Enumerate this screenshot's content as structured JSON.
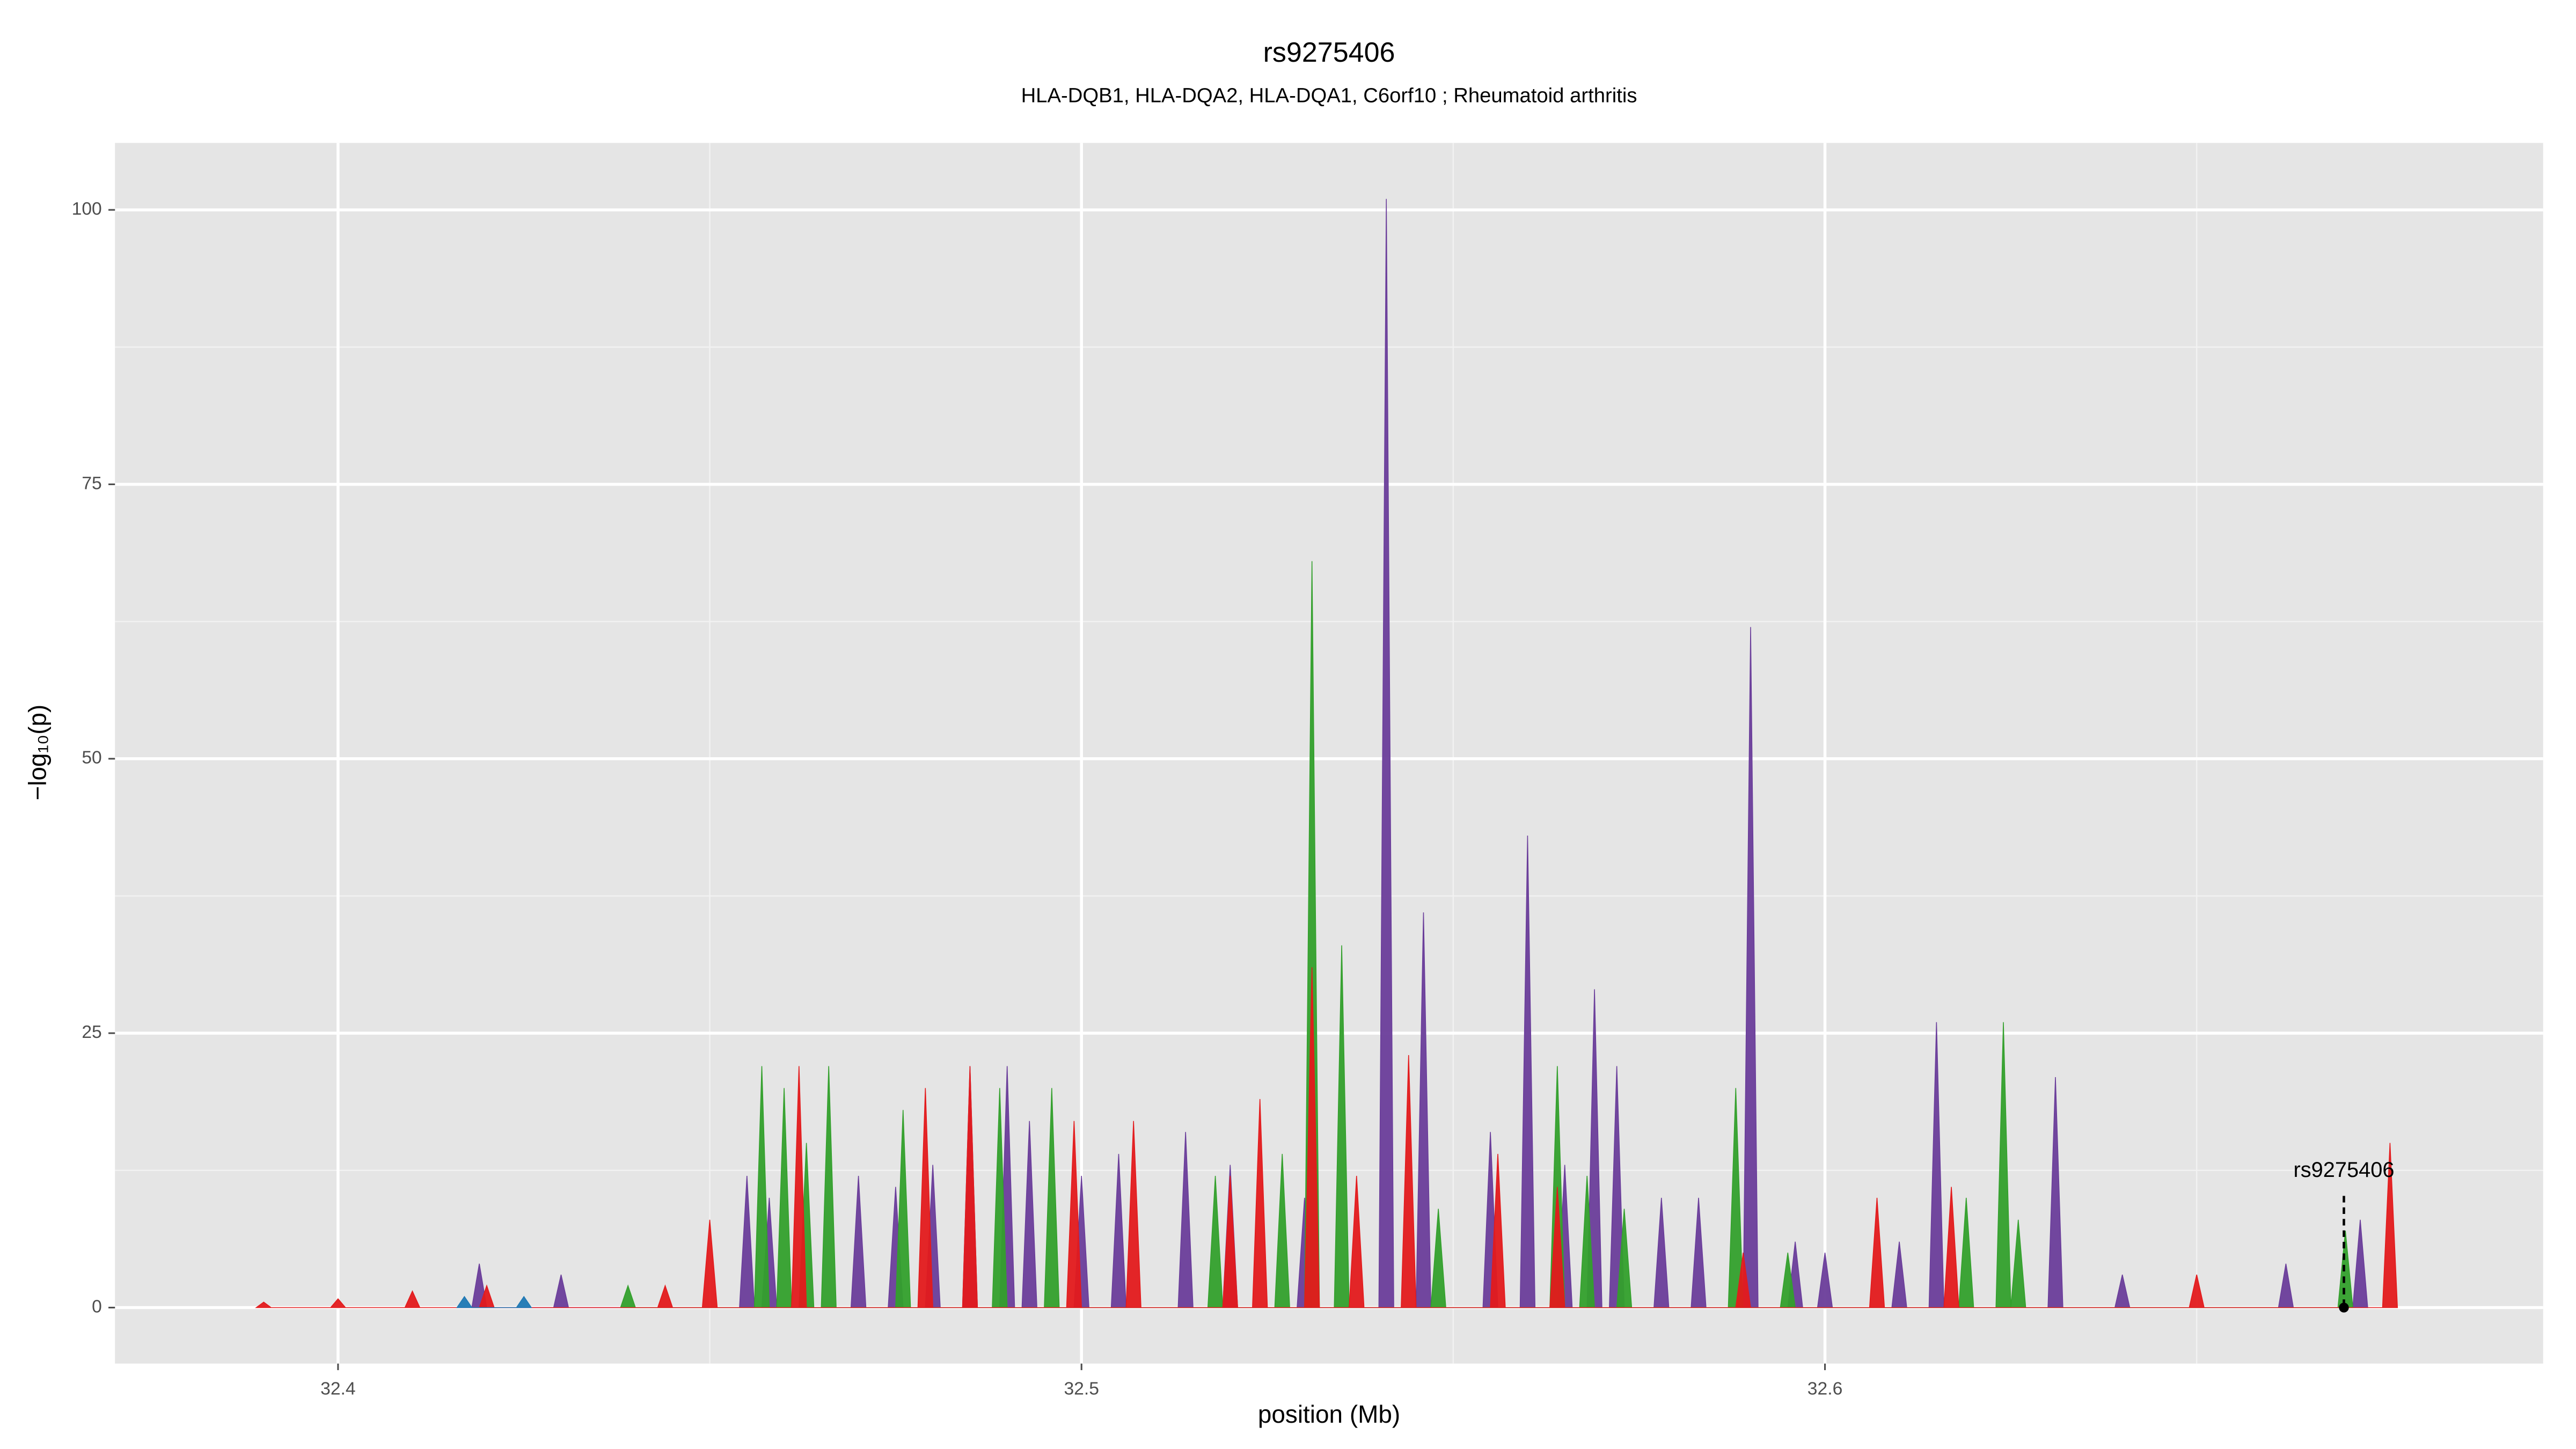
{
  "chart_data": {
    "type": "area",
    "title": "rs9275406",
    "subtitle": "HLA-DQB1, HLA-DQA2, HLA-DQA1, C6orf10 ; Rheumatoid arthritis",
    "xlabel": "position (Mb)",
    "ylabel": "−log₁₀(p)",
    "xlim": [
      32.37,
      32.6966
    ],
    "ylim": [
      -5.1,
      106.1
    ],
    "xticks": [
      32.4,
      32.5,
      32.6
    ],
    "yticks": [
      0,
      25,
      50,
      75,
      100
    ],
    "xminorticks": [
      32.45,
      32.55,
      32.65
    ],
    "yminorticks": [
      12.5,
      37.5,
      62.5,
      87.5
    ],
    "grid": true,
    "series": [
      {
        "color": "#6a3d9a",
        "x": [
          32.418,
          32.419,
          32.42,
          32.429,
          32.43,
          32.431,
          32.454,
          32.455,
          32.456,
          32.457,
          32.458,
          32.459,
          32.469,
          32.47,
          32.471,
          32.474,
          32.475,
          32.476,
          32.479,
          32.48,
          32.481,
          32.484,
          32.485,
          32.486,
          32.489,
          32.49,
          32.491,
          32.492,
          32.493,
          32.494,
          32.499,
          32.5,
          32.501,
          32.504,
          32.505,
          32.506,
          32.513,
          32.514,
          32.515,
          32.519,
          32.52,
          32.521,
          32.529,
          32.53,
          32.531,
          32.54,
          32.541,
          32.542,
          32.545,
          32.546,
          32.547,
          32.554,
          32.555,
          32.556,
          32.559,
          32.56,
          32.561,
          32.564,
          32.565,
          32.566,
          32.568,
          32.569,
          32.57,
          32.571,
          32.572,
          32.573,
          32.577,
          32.578,
          32.579,
          32.582,
          32.583,
          32.584,
          32.589,
          32.59,
          32.591,
          32.595,
          32.596,
          32.597,
          32.599,
          32.6,
          32.601,
          32.609,
          32.61,
          32.611,
          32.614,
          32.615,
          32.616,
          32.63,
          32.631,
          32.632,
          32.639,
          32.64,
          32.641,
          32.661,
          32.662,
          32.663,
          32.671,
          32.672,
          32.673
        ],
        "values": [
          0,
          4,
          0,
          0,
          3,
          0,
          0,
          12,
          0,
          0,
          10,
          0,
          0,
          12,
          0,
          0,
          11,
          0,
          0,
          13,
          0,
          0,
          22,
          0,
          0,
          22,
          0,
          0,
          17,
          0,
          0,
          12,
          0,
          0,
          14,
          0,
          0,
          16,
          0,
          0,
          13,
          0,
          0,
          10,
          0,
          0,
          101,
          0,
          0,
          36,
          0,
          0,
          16,
          0,
          0,
          43,
          0,
          0,
          13,
          0,
          0,
          29,
          0,
          0,
          22,
          0,
          0,
          10,
          0,
          0,
          10,
          0,
          0,
          62,
          0,
          0,
          6,
          0,
          0,
          5,
          0,
          0,
          6,
          0,
          0,
          26,
          0,
          0,
          21,
          0,
          0,
          3,
          0,
          0,
          4,
          0,
          0,
          8,
          0
        ]
      },
      {
        "color": "#33a02c",
        "x": [
          32.438,
          32.439,
          32.44,
          32.456,
          32.457,
          32.458,
          32.459,
          32.46,
          32.461,
          32.462,
          32.463,
          32.464,
          32.465,
          32.466,
          32.467,
          32.475,
          32.476,
          32.477,
          32.488,
          32.489,
          32.49,
          32.495,
          32.496,
          32.497,
          32.517,
          32.518,
          32.519,
          32.526,
          32.527,
          32.528,
          32.53,
          32.531,
          32.532,
          32.534,
          32.535,
          32.536,
          32.547,
          32.548,
          32.549,
          32.563,
          32.564,
          32.565,
          32.567,
          32.568,
          32.569,
          32.572,
          32.573,
          32.574,
          32.587,
          32.588,
          32.589,
          32.594,
          32.595,
          32.596,
          32.618,
          32.619,
          32.62,
          32.623,
          32.624,
          32.625,
          32.625,
          32.626,
          32.627,
          32.669,
          32.67,
          32.671
        ],
        "values": [
          0,
          2,
          0,
          0,
          22,
          0,
          0,
          20,
          0,
          0,
          15,
          0,
          0,
          22,
          0,
          0,
          18,
          0,
          0,
          20,
          0,
          0,
          20,
          0,
          0,
          12,
          0,
          0,
          14,
          0,
          0,
          68,
          0,
          0,
          33,
          0,
          0,
          9,
          0,
          0,
          22,
          0,
          0,
          12,
          0,
          0,
          9,
          0,
          0,
          20,
          0,
          0,
          5,
          0,
          0,
          10,
          0,
          0,
          26,
          0,
          0,
          8,
          0,
          0,
          7,
          0
        ]
      },
      {
        "color": "#e31a1c",
        "x": [
          32.389,
          32.39,
          32.391,
          32.399,
          32.4,
          32.401,
          32.409,
          32.41,
          32.411,
          32.419,
          32.42,
          32.421,
          32.443,
          32.444,
          32.445,
          32.449,
          32.45,
          32.451,
          32.461,
          32.462,
          32.463,
          32.478,
          32.479,
          32.48,
          32.484,
          32.485,
          32.486,
          32.498,
          32.499,
          32.5,
          32.506,
          32.507,
          32.508,
          32.519,
          32.52,
          32.521,
          32.523,
          32.524,
          32.525,
          32.53,
          32.531,
          32.532,
          32.536,
          32.537,
          32.538,
          32.543,
          32.544,
          32.545,
          32.555,
          32.556,
          32.557,
          32.563,
          32.564,
          32.565,
          32.588,
          32.589,
          32.59,
          32.606,
          32.607,
          32.608,
          32.616,
          32.617,
          32.618,
          32.649,
          32.65,
          32.651,
          32.675,
          32.676,
          32.677
        ],
        "values": [
          0,
          0.5,
          0,
          0,
          0.8,
          0,
          0,
          1.5,
          0,
          0,
          2,
          0,
          0,
          2,
          0,
          0,
          8,
          0,
          0,
          22,
          0,
          0,
          20,
          0,
          0,
          22,
          0,
          0,
          17,
          0,
          0,
          17,
          0,
          0,
          12,
          0,
          0,
          19,
          0,
          0,
          31,
          0,
          0,
          12,
          0,
          0,
          23,
          0,
          0,
          14,
          0,
          0,
          11,
          0,
          0,
          5,
          0,
          0,
          10,
          0,
          0,
          11,
          0,
          0,
          3,
          0,
          0,
          15,
          0
        ]
      },
      {
        "color": "#1f78b4",
        "x": [
          32.416,
          32.417,
          32.418,
          32.424,
          32.425,
          32.426
        ],
        "values": [
          0,
          1,
          0,
          0,
          1,
          0
        ]
      }
    ],
    "annotation": {
      "text": "rs9275406",
      "x": 32.6698,
      "y": 0
    }
  }
}
